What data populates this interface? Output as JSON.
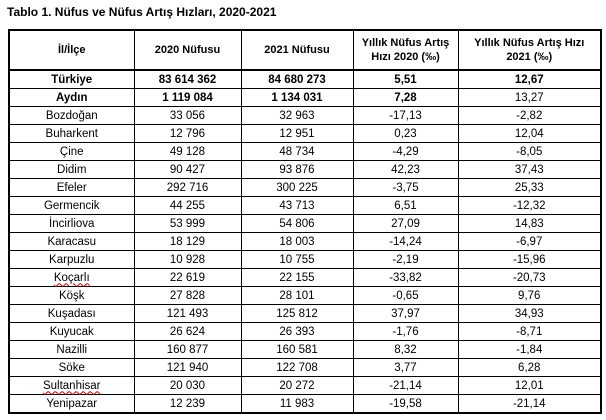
{
  "title": "Tablo 1. Nüfus ve Nüfus Artış Hızları, 2020-2021",
  "table": {
    "columns": [
      "İl/İlçe",
      "2020 Nüfusu",
      "2021 Nüfusu",
      "Yıllık Nüfus Artış Hızı 2020 (‰)",
      "Yıllık Nüfus Artış Hızı 2021 (‰)"
    ],
    "rows": [
      {
        "name": "Türkiye",
        "pop2020": "83 614 362",
        "pop2021": "84 680 273",
        "rate2020": "5,51",
        "rate2021": "12,67",
        "style": "bold",
        "misspelled": false
      },
      {
        "name": "Aydın",
        "pop2020": "1 119 084",
        "pop2021": "1 134 031",
        "rate2020": "7,28",
        "rate2021": "13,27",
        "style": "bold-except-last",
        "misspelled": false
      },
      {
        "name": "Bozdoğan",
        "pop2020": "33 056",
        "pop2021": "32 963",
        "rate2020": "-17,13",
        "rate2021": "-2,82",
        "style": "normal",
        "misspelled": false
      },
      {
        "name": "Buharkent",
        "pop2020": "12 796",
        "pop2021": "12 951",
        "rate2020": "0,23",
        "rate2021": "12,04",
        "style": "normal",
        "misspelled": false
      },
      {
        "name": "Çine",
        "pop2020": "49 128",
        "pop2021": "48 734",
        "rate2020": "-4,29",
        "rate2021": "-8,05",
        "style": "normal",
        "misspelled": false
      },
      {
        "name": "Didim",
        "pop2020": "90 427",
        "pop2021": "93 876",
        "rate2020": "42,23",
        "rate2021": "37,43",
        "style": "normal",
        "misspelled": false
      },
      {
        "name": "Efeler",
        "pop2020": "292 716",
        "pop2021": "300 225",
        "rate2020": "-3,75",
        "rate2021": "25,33",
        "style": "normal",
        "misspelled": false
      },
      {
        "name": "Germencik",
        "pop2020": "44 255",
        "pop2021": "43 713",
        "rate2020": "6,51",
        "rate2021": "-12,32",
        "style": "normal",
        "misspelled": false
      },
      {
        "name": "İncirliova",
        "pop2020": "53 999",
        "pop2021": "54 806",
        "rate2020": "27,09",
        "rate2021": "14,83",
        "style": "normal",
        "misspelled": false
      },
      {
        "name": "Karacasu",
        "pop2020": "18 129",
        "pop2021": "18 003",
        "rate2020": "-14,24",
        "rate2021": "-6,97",
        "style": "normal",
        "misspelled": false
      },
      {
        "name": "Karpuzlu",
        "pop2020": "10 928",
        "pop2021": "10 755",
        "rate2020": "-2,19",
        "rate2021": "-15,96",
        "style": "normal",
        "misspelled": false
      },
      {
        "name": "Koçarlı",
        "pop2020": "22 619",
        "pop2021": "22 155",
        "rate2020": "-33,82",
        "rate2021": "-20,73",
        "style": "normal",
        "misspelled": true
      },
      {
        "name": "Köşk",
        "pop2020": "27 828",
        "pop2021": "28 101",
        "rate2020": "-0,65",
        "rate2021": "9,76",
        "style": "normal",
        "misspelled": false
      },
      {
        "name": "Kuşadası",
        "pop2020": "121 493",
        "pop2021": "125 812",
        "rate2020": "37,97",
        "rate2021": "34,93",
        "style": "normal",
        "misspelled": false
      },
      {
        "name": "Kuyucak",
        "pop2020": "26 624",
        "pop2021": "26 393",
        "rate2020": "-1,76",
        "rate2021": "-8,71",
        "style": "normal",
        "misspelled": false
      },
      {
        "name": "Nazilli",
        "pop2020": "160 877",
        "pop2021": "160 581",
        "rate2020": "8,32",
        "rate2021": "-1,84",
        "style": "normal",
        "misspelled": false
      },
      {
        "name": "Söke",
        "pop2020": "121 940",
        "pop2021": "122 708",
        "rate2020": "3,77",
        "rate2021": "6,28",
        "style": "normal",
        "misspelled": false
      },
      {
        "name": "Sultanhisar",
        "pop2020": "20 030",
        "pop2021": "20 272",
        "rate2020": "-21,14",
        "rate2021": "12,01",
        "style": "normal",
        "misspelled": true
      },
      {
        "name": "Yenipazar",
        "pop2020": "12 239",
        "pop2021": "11 983",
        "rate2020": "-19,58",
        "rate2021": "-21,14",
        "style": "normal",
        "misspelled": false
      }
    ]
  },
  "colors": {
    "text": "#000000",
    "border": "#000000",
    "background": "#ffffff",
    "spellcheck_underline": "#c00000"
  }
}
